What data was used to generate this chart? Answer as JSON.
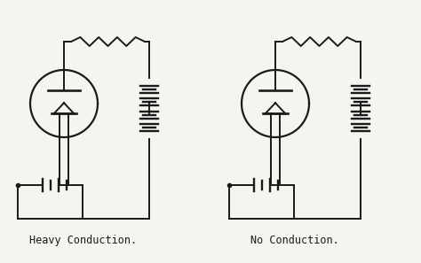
{
  "background_color": "#f5f5f0",
  "line_color": "#1a1a1a",
  "line_width": 1.4,
  "label1": "Heavy Conduction.",
  "label2": "No Conduction.",
  "label_fontsize": 8.5,
  "label_font": "monospace",
  "fig_w": 4.74,
  "fig_h": 2.97,
  "dpi": 100
}
